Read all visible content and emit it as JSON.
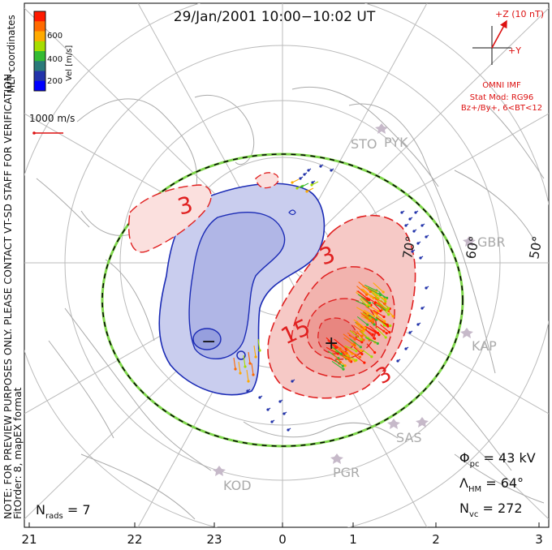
{
  "title": "29/Jan/2001  10:00−10:02 UT",
  "colorbar": {
    "label": "Vel [m/s]",
    "ticks": [
      "600",
      "400",
      "200"
    ],
    "colors": [
      "#ff1a00",
      "#ff6a00",
      "#ffaa00",
      "#a6dd00",
      "#33bb33",
      "#2a7a7a",
      "#2233aa",
      "#0000ff"
    ]
  },
  "coord_label": "MLT coordinates",
  "ref_vector_label": "1000 m/s",
  "note_line1": "NOTE: FOR PREVIEW PURPOSES ONLY. PLEASE CONTACT VT-SD STAFF FOR VERIFICATION.",
  "note_line2": "FitOrder: 8,  mapEX format",
  "imf": {
    "z_label": "+Z (10 nT)",
    "y_label": "+Y",
    "source": "OMNI IMF",
    "model_line1": "Stat Mod: RG96",
    "model_line2": "Bz+/By+, 6<BT<12"
  },
  "stations": [
    "STO",
    "PYK",
    "GBR",
    "KAP",
    "SAS",
    "PGR",
    "KOD"
  ],
  "latitude_labels": [
    "70°",
    "60°",
    "50°"
  ],
  "contour_labels": [
    "3",
    "3",
    "15",
    "3"
  ],
  "extrema": {
    "min": "−",
    "max": "+"
  },
  "stats": {
    "phi_pc": "Φ",
    "phi_pc_sub": "pc",
    "phi_pc_value": " = 43 kV",
    "lambda_hm": "Λ",
    "lambda_hm_sub": "HM",
    "lambda_hm_value": " = 64°",
    "n_vc": "N",
    "n_vc_sub": "vc",
    "n_vc_value": " = 272",
    "n_rads": "N",
    "n_rads_sub": "rads",
    "n_rads_value": " = 7"
  },
  "mlt_ticks": [
    "21",
    "22",
    "23",
    "0",
    "1",
    "2",
    "3"
  ]
}
